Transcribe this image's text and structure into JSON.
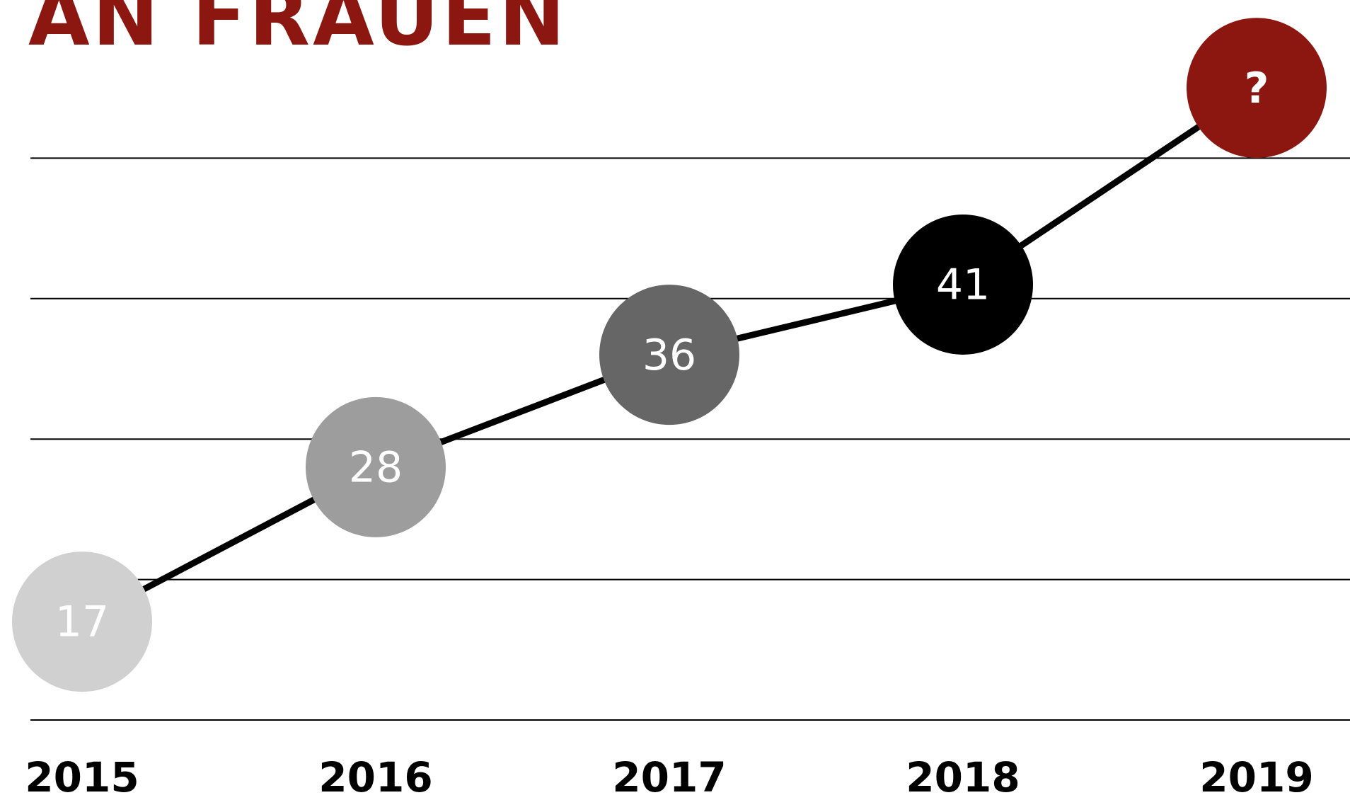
{
  "chart_data": {
    "type": "line",
    "title": "AN FRAUEN",
    "categories": [
      "2015",
      "2016",
      "2017",
      "2018",
      "2019"
    ],
    "series": [
      {
        "values": [
          17,
          28,
          36,
          41,
          55
        ],
        "value_labels": [
          "17",
          "28",
          "36",
          "41",
          "?"
        ],
        "color": "#000000",
        "point_colors": [
          "#d0d0d0",
          "#9d9d9d",
          "#666666",
          "#000000",
          "#8b1710"
        ]
      }
    ],
    "ylim": [
      10,
      60
    ],
    "yticks": [
      10,
      20,
      30,
      40,
      50
    ],
    "grid": true
  }
}
